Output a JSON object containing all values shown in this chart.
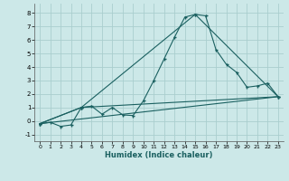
{
  "xlabel": "Humidex (Indice chaleur)",
  "ylabel": "",
  "bg_color": "#cce8e8",
  "grid_color": "#aacece",
  "line_color": "#1a6060",
  "xlim": [
    -0.5,
    23.5
  ],
  "ylim": [
    -1.5,
    8.7
  ],
  "xticks": [
    0,
    1,
    2,
    3,
    4,
    5,
    6,
    7,
    8,
    9,
    10,
    11,
    12,
    13,
    14,
    15,
    16,
    17,
    18,
    19,
    20,
    21,
    22,
    23
  ],
  "yticks": [
    -1,
    0,
    1,
    2,
    3,
    4,
    5,
    6,
    7,
    8
  ],
  "line1_x": [
    0,
    1,
    2,
    3,
    4,
    5,
    6,
    7,
    8,
    9,
    10,
    11,
    12,
    13,
    14,
    15,
    16,
    17,
    18,
    19,
    20,
    21,
    22,
    23
  ],
  "line1_y": [
    -0.2,
    -0.1,
    -0.4,
    -0.3,
    1.0,
    1.1,
    0.5,
    1.0,
    0.45,
    0.4,
    1.5,
    3.0,
    4.6,
    6.2,
    7.7,
    7.9,
    7.8,
    5.3,
    4.2,
    3.6,
    2.5,
    2.6,
    2.8,
    1.8
  ],
  "line2_x": [
    0,
    4,
    23
  ],
  "line2_y": [
    -0.2,
    1.0,
    1.8
  ],
  "line3_x": [
    0,
    4,
    15,
    23
  ],
  "line3_y": [
    -0.2,
    1.0,
    7.9,
    1.8
  ],
  "line4_x": [
    0,
    23
  ],
  "line4_y": [
    -0.2,
    1.8
  ],
  "figsize": [
    3.2,
    2.0
  ],
  "dpi": 100
}
